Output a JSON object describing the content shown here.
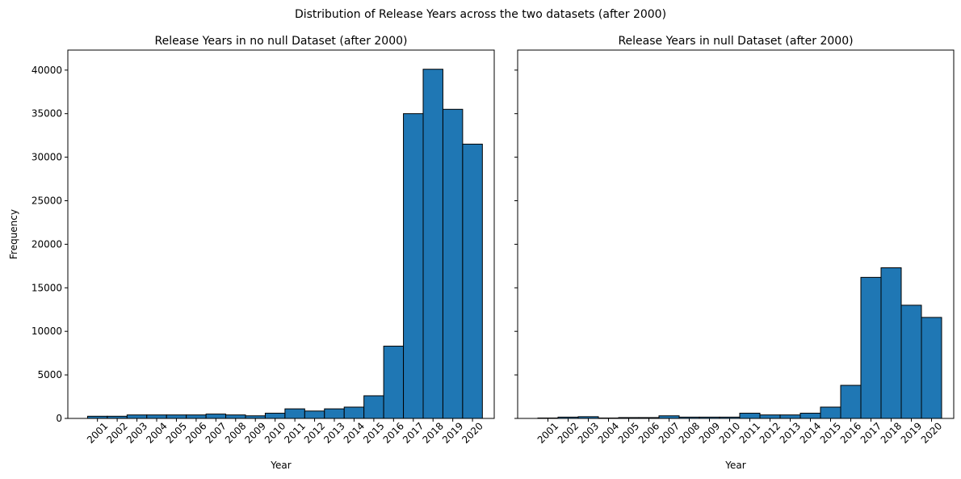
{
  "title": "Distribution of Release Years across the two datasets (after 2000)",
  "chart_data": [
    {
      "type": "histogram",
      "title": "Release Years in no null Dataset (after 2000)",
      "xlabel": "Year",
      "ylabel": "Frequency",
      "bins": [
        2000.5,
        2001.5,
        2002.5,
        2003.5,
        2004.5,
        2005.5,
        2006.5,
        2007.5,
        2008.5,
        2009.5,
        2010.5,
        2011.5,
        2012.5,
        2013.5,
        2014.5,
        2015.5,
        2016.5,
        2017.5,
        2018.5,
        2019.5,
        2020.5
      ],
      "values": [
        250,
        250,
        400,
        400,
        400,
        400,
        500,
        400,
        300,
        600,
        1100,
        850,
        1100,
        1300,
        2600,
        8300,
        35000,
        40100,
        35500,
        31500
      ],
      "color": "#1f77b4",
      "edgecolor": "#000000",
      "xlim": [
        1999.5,
        2021.1
      ],
      "ylim": [
        0,
        42300
      ],
      "xticks": [
        2001,
        2002,
        2003,
        2004,
        2005,
        2006,
        2007,
        2008,
        2009,
        2010,
        2011,
        2012,
        2013,
        2014,
        2015,
        2016,
        2017,
        2018,
        2019,
        2020
      ],
      "yticks": [
        0,
        5000,
        10000,
        15000,
        20000,
        25000,
        30000,
        35000,
        40000
      ],
      "ytick_labels": true
    },
    {
      "type": "histogram",
      "title": "Release Years in null Dataset (after 2000)",
      "xlabel": "Year",
      "bins": [
        2000.5,
        2001.5,
        2002.5,
        2003.5,
        2004.5,
        2005.5,
        2006.5,
        2007.5,
        2008.5,
        2009.5,
        2010.5,
        2011.5,
        2012.5,
        2013.5,
        2014.5,
        2015.5,
        2016.5,
        2017.5,
        2018.5,
        2019.5,
        2020.5
      ],
      "values": [
        50,
        150,
        200,
        50,
        100,
        100,
        300,
        150,
        150,
        150,
        600,
        400,
        400,
        600,
        1300,
        3800,
        16200,
        17300,
        13000,
        11600
      ],
      "color": "#1f77b4",
      "edgecolor": "#000000",
      "xlim": [
        1999.5,
        2021.1
      ],
      "ylim": [
        0,
        42300
      ],
      "xticks": [
        2001,
        2002,
        2003,
        2004,
        2005,
        2006,
        2007,
        2008,
        2009,
        2010,
        2011,
        2012,
        2013,
        2014,
        2015,
        2016,
        2017,
        2018,
        2019,
        2020
      ],
      "yticks": [
        0,
        5000,
        10000,
        15000,
        20000,
        25000,
        30000,
        35000,
        40000
      ],
      "ytick_labels": false
    }
  ]
}
